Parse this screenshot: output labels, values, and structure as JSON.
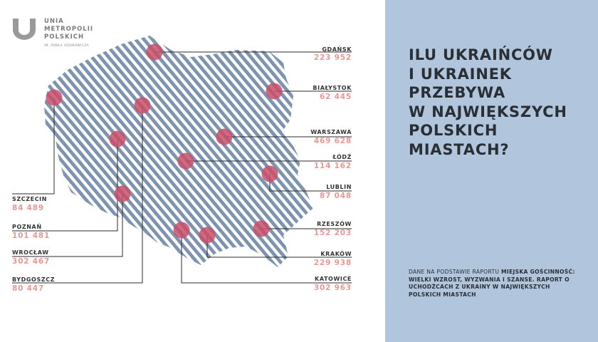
{
  "logo": {
    "lines": [
      "UNIA",
      "METROPOLII",
      "POLSKICH"
    ],
    "subtitle": "IM. PAWŁA ADAMOWICZA"
  },
  "headline": [
    "ILU UKRAIŃCÓW",
    "I UKRAINEK",
    "PRZEBYWA",
    "W NAJWIĘKSZYCH",
    "POLSKICH",
    "MIASTACH?"
  ],
  "source": {
    "prefix": "DANE NA PODSTAWIE RAPORTU ",
    "bold": "MIEJSKA GOŚCINNOŚĆ: WIELKI WZROST, WYZWANIA I SZANSE. RAPORT O UCHODŹCACH Z UKRAINY W NAJWIĘKSZYCH POLSKICH MIASTACH"
  },
  "cities": [
    {
      "id": "gdansk",
      "name": "GDAŃSK",
      "value": "223 952"
    },
    {
      "id": "bialystok",
      "name": "BIAŁYSTOK",
      "value": "62 445"
    },
    {
      "id": "warszawa",
      "name": "WARSZAWA",
      "value": "469 628"
    },
    {
      "id": "lodz",
      "name": "ŁÓDŹ",
      "value": "114 162"
    },
    {
      "id": "lublin",
      "name": "LUBLIN",
      "value": "87 048"
    },
    {
      "id": "rzeszow",
      "name": "RZESZÓW",
      "value": "152 203"
    },
    {
      "id": "krakow",
      "name": "KRAKÓW",
      "value": "229 938"
    },
    {
      "id": "katowice",
      "name": "KATOWICE",
      "value": "302 963"
    },
    {
      "id": "szczecin",
      "name": "SZCZECIN",
      "value": "84 489"
    },
    {
      "id": "poznan",
      "name": "POZNAŃ",
      "value": "101 481"
    },
    {
      "id": "wroclaw",
      "name": "WROCŁAW",
      "value": "302 467"
    },
    {
      "id": "bydgoszcz",
      "name": "BYDGOSZCZ",
      "value": "80 447"
    }
  ],
  "colors": {
    "map_stripe": "#7d93b0",
    "marker": "#c94f6a",
    "value_text": "#e89892",
    "panel": "#b1c5dc",
    "headline": "#2a2f36",
    "logo": "#9a9a9a"
  }
}
